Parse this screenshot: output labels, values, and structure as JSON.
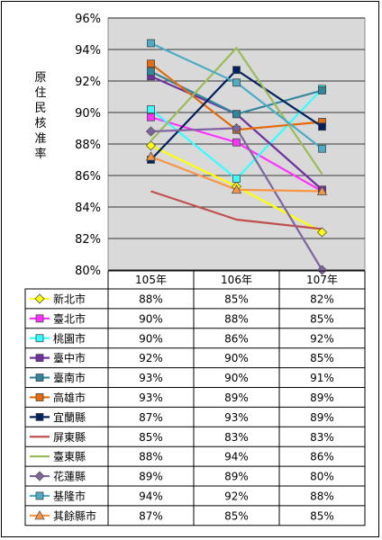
{
  "chart_data": {
    "type": "line",
    "ylabel": "原住民核准率",
    "categories": [
      "105年",
      "106年",
      "107年"
    ],
    "ylim": [
      80,
      96
    ],
    "yticks": [
      "80%",
      "82%",
      "84%",
      "86%",
      "88%",
      "90%",
      "92%",
      "94%",
      "96%"
    ],
    "grid": true,
    "legend": "table-below",
    "series": [
      {
        "name": "新北市",
        "display": [
          "88%",
          "85%",
          "82%"
        ],
        "values": [
          87.9,
          85.3,
          82.4
        ],
        "color": "#ffff00",
        "marker": "diamond"
      },
      {
        "name": "臺北市",
        "display": [
          "90%",
          "88%",
          "85%"
        ],
        "values": [
          89.7,
          88.1,
          85.0
        ],
        "color": "#ff33ff",
        "marker": "square"
      },
      {
        "name": "桃園市",
        "display": [
          "90%",
          "86%",
          "92%"
        ],
        "values": [
          90.2,
          85.8,
          91.5
        ],
        "color": "#33ffff",
        "marker": "square"
      },
      {
        "name": "臺中市",
        "display": [
          "92%",
          "90%",
          "85%"
        ],
        "values": [
          92.3,
          89.9,
          85.1
        ],
        "color": "#7030a0",
        "marker": "square"
      },
      {
        "name": "臺南市",
        "display": [
          "93%",
          "90%",
          "91%"
        ],
        "values": [
          92.6,
          89.9,
          91.4
        ],
        "color": "#31859c",
        "marker": "square"
      },
      {
        "name": "高雄市",
        "display": [
          "93%",
          "89%",
          "89%"
        ],
        "values": [
          93.1,
          88.9,
          89.4
        ],
        "color": "#e46c0a",
        "marker": "square"
      },
      {
        "name": "宜蘭縣",
        "display": [
          "87%",
          "93%",
          "89%"
        ],
        "values": [
          87.0,
          92.7,
          89.1
        ],
        "color": "#002060",
        "marker": "square"
      },
      {
        "name": "屏東縣",
        "display": [
          "85%",
          "83%",
          "83%"
        ],
        "values": [
          85.0,
          83.2,
          82.6
        ],
        "color": "#c0504d",
        "marker": "none"
      },
      {
        "name": "臺東縣",
        "display": [
          "88%",
          "94%",
          "86%"
        ],
        "values": [
          88.2,
          94.1,
          86.1
        ],
        "color": "#9bbb59",
        "marker": "none"
      },
      {
        "name": "花蓮縣",
        "display": [
          "89%",
          "89%",
          "80%"
        ],
        "values": [
          88.8,
          89.0,
          80.0
        ],
        "color": "#8064a2",
        "marker": "diamond"
      },
      {
        "name": "基隆市",
        "display": [
          "94%",
          "92%",
          "88%"
        ],
        "values": [
          94.4,
          91.9,
          87.7
        ],
        "color": "#4bacc6",
        "marker": "square"
      },
      {
        "name": "其餘縣市",
        "display": [
          "87%",
          "85%",
          "85%"
        ],
        "values": [
          87.2,
          85.1,
          85.0
        ],
        "color": "#f79646",
        "marker": "triangle"
      }
    ]
  }
}
